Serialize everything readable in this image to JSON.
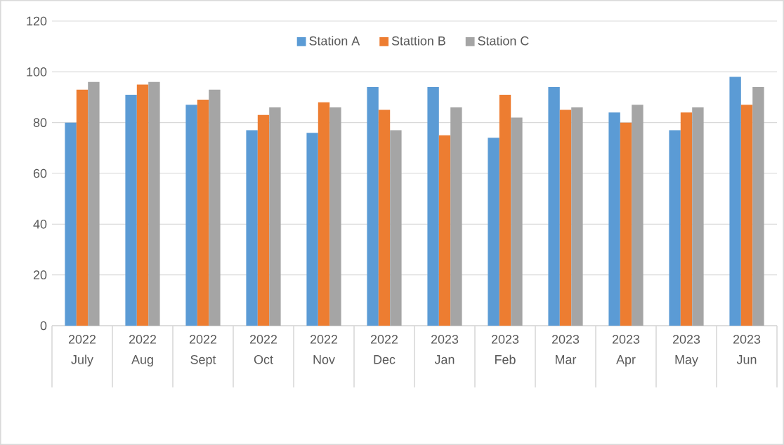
{
  "chart_data": {
    "type": "bar",
    "categories": [
      "2022 July",
      "2022 Aug",
      "2022 Sept",
      "2022 Oct",
      "2022 Nov",
      "2022 Dec",
      "2023 Jan",
      "2023 Feb",
      "2023 Mar",
      "2023 Apr",
      "2023 May",
      "2023 Jun"
    ],
    "series": [
      {
        "name": "Station A",
        "color": "#5b9bd5",
        "values": [
          80,
          91,
          87,
          77,
          76,
          94,
          94,
          74,
          94,
          84,
          77,
          98
        ]
      },
      {
        "name": "Stattion B",
        "color": "#ed7d31",
        "values": [
          93,
          95,
          89,
          83,
          88,
          85,
          75,
          91,
          85,
          80,
          84,
          87
        ]
      },
      {
        "name": "Station C",
        "color": "#a5a5a5",
        "values": [
          96,
          96,
          93,
          86,
          86,
          77,
          86,
          82,
          86,
          87,
          86,
          94
        ]
      }
    ],
    "ylim": [
      0,
      120
    ],
    "yticks": [
      0,
      20,
      40,
      60,
      80,
      100,
      120
    ],
    "grid": "y",
    "legend": "top"
  }
}
